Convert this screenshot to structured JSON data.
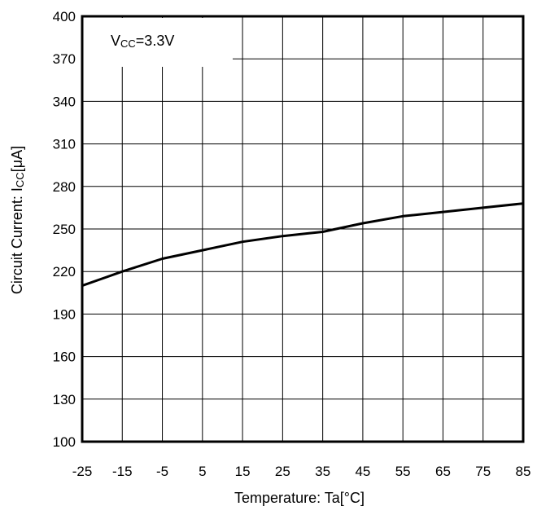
{
  "chart_data": {
    "type": "line",
    "title": "",
    "xlabel": "Temperature: Ta[°C]",
    "ylabel": {
      "main": "Circuit Current: I",
      "sub": "CC",
      "unit": "[μA]"
    },
    "annotation": {
      "main": "V",
      "sub": "CC",
      "rest": "=3.3V"
    },
    "xlim": [
      -25,
      85
    ],
    "ylim": [
      100,
      400
    ],
    "x_ticks": [
      -25,
      -15,
      -5,
      5,
      15,
      25,
      35,
      45,
      55,
      65,
      75,
      85
    ],
    "x_tick_labels": [
      "-25",
      "-15",
      "-5",
      "5",
      "15",
      "25",
      "35",
      "45",
      "55",
      "65",
      "75",
      "85"
    ],
    "y_ticks": [
      100,
      130,
      160,
      190,
      220,
      250,
      280,
      310,
      340,
      370,
      400
    ],
    "y_tick_labels": [
      "100",
      "130",
      "160",
      "190",
      "220",
      "250",
      "280",
      "310",
      "340",
      "370",
      "400"
    ],
    "grid": true,
    "series": [
      {
        "x": [
          -25,
          -15,
          -5,
          5,
          15,
          25,
          35,
          45,
          55,
          65,
          75,
          85
        ],
        "y": [
          210,
          220,
          229,
          235,
          241,
          245,
          248,
          254,
          259,
          262,
          265,
          268
        ]
      }
    ]
  }
}
